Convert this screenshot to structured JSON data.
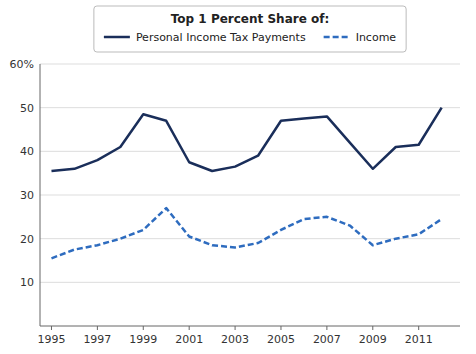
{
  "chart_data": {
    "type": "line",
    "legend_title": "Top 1 Percent Share of:",
    "x": [
      1995,
      1996,
      1997,
      1998,
      1999,
      2000,
      2001,
      2002,
      2003,
      2004,
      2005,
      2006,
      2007,
      2008,
      2009,
      2010,
      2011,
      2012
    ],
    "series": [
      {
        "name": "Personal Income Tax Payments",
        "color": "#1a2e5a",
        "line_style": "solid",
        "values": [
          35.5,
          36.0,
          38.0,
          41.0,
          48.5,
          47.0,
          37.5,
          35.5,
          36.5,
          39.0,
          47.0,
          47.5,
          48.0,
          42.0,
          36.0,
          41.0,
          41.5,
          50.0
        ]
      },
      {
        "name": "Income",
        "color": "#2e6cbf",
        "line_style": "dashed",
        "values": [
          15.5,
          17.5,
          18.5,
          20.0,
          22.0,
          27.0,
          20.5,
          18.5,
          18.0,
          19.0,
          22.0,
          24.5,
          25.0,
          23.0,
          18.5,
          20.0,
          21.0,
          24.5
        ]
      }
    ],
    "xlim": [
      1994.5,
      2012.8
    ],
    "xticks": [
      1995,
      1997,
      1999,
      2001,
      2003,
      2005,
      2007,
      2009,
      2011
    ],
    "ylim": [
      0,
      60
    ],
    "yticks": [
      10,
      20,
      30,
      40,
      50,
      {
        "value": 60,
        "label": "60%"
      }
    ],
    "grid": true,
    "legend": "top"
  }
}
